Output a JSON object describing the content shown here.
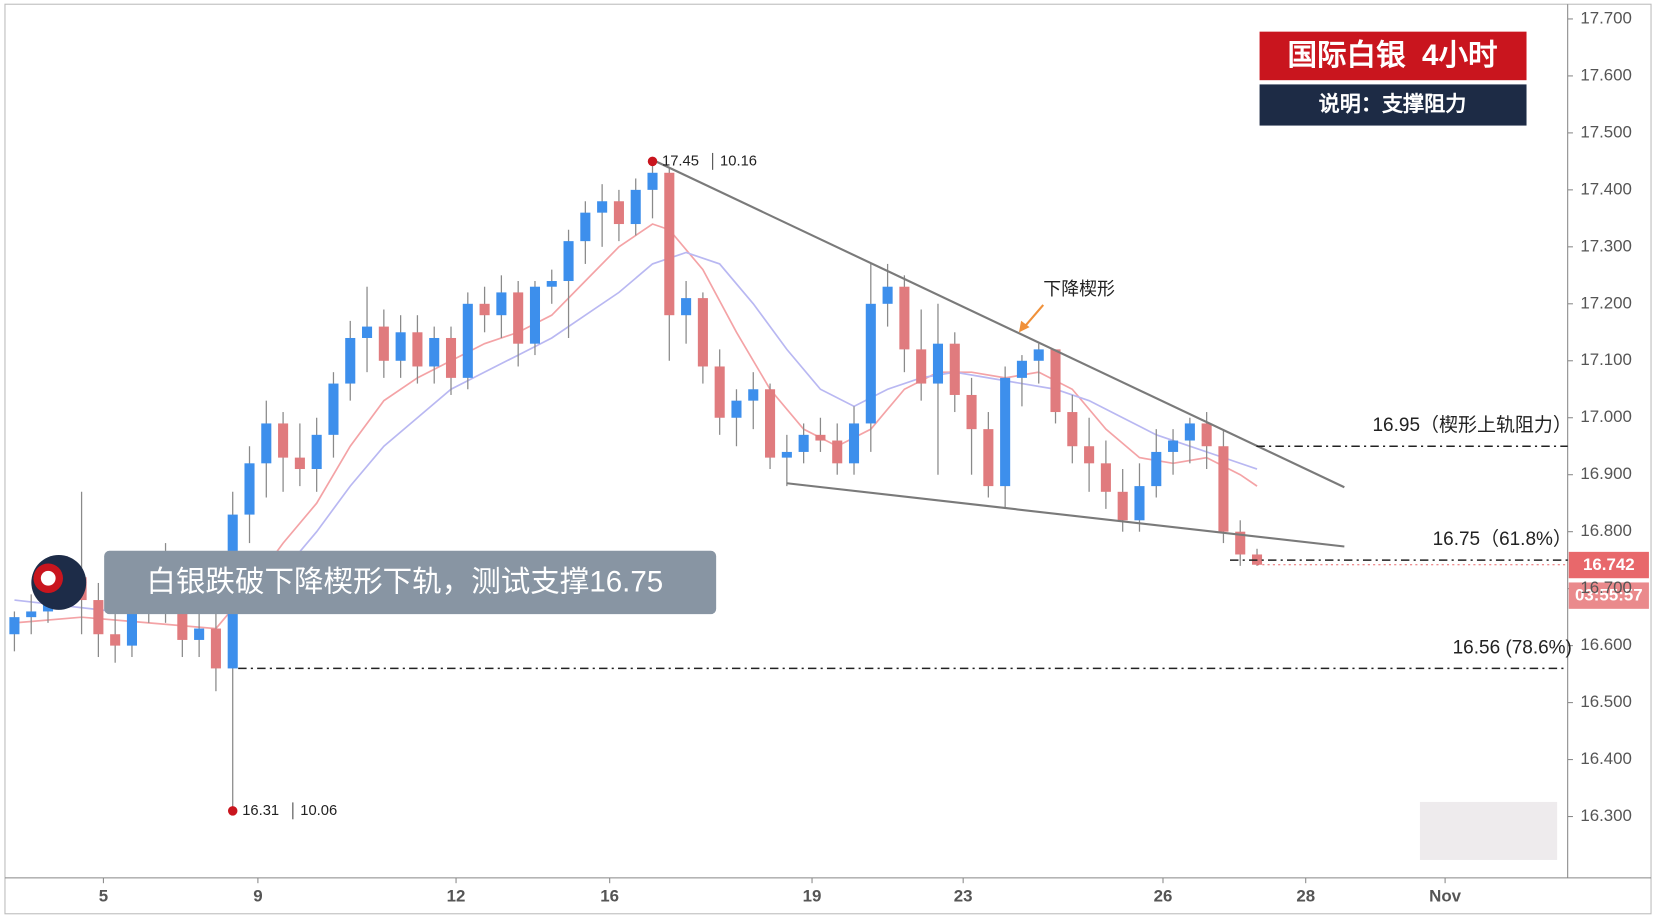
{
  "chart_data": {
    "type": "candlestick",
    "title": "国际白银  4小时",
    "subtitle": "说明：支撑阻力",
    "callout": "白银跌破下降楔形下轨，测试支撑16.75",
    "pattern_label": "下降楔形",
    "up_color": "#3d8fec",
    "down_color": "#e07b7e",
    "xlim": [
      -0.5,
      92.5
    ],
    "ylim": [
      16.196,
      17.724
    ],
    "xticks": [
      {
        "value": 5.3,
        "label": "5"
      },
      {
        "value": 14.5,
        "label": "9"
      },
      {
        "value": 26.3,
        "label": "12"
      },
      {
        "value": 35.45,
        "label": "16"
      },
      {
        "value": 47.5,
        "label": "19"
      },
      {
        "value": 56.5,
        "label": "23"
      },
      {
        "value": 68.4,
        "label": "26"
      },
      {
        "value": 76.9,
        "label": "28"
      },
      {
        "value": 85.2,
        "label": "Nov"
      }
    ],
    "yticks": [
      {
        "value": 16.3,
        "label": "16.300"
      },
      {
        "value": 16.4,
        "label": "16.400"
      },
      {
        "value": 16.5,
        "label": "16.500"
      },
      {
        "value": 16.6,
        "label": "16.600"
      },
      {
        "value": 16.7,
        "label": "16.700"
      },
      {
        "value": 16.8,
        "label": "16.800"
      },
      {
        "value": 16.9,
        "label": "16.900"
      },
      {
        "value": 17.0,
        "label": "17.000"
      },
      {
        "value": 17.1,
        "label": "17.100"
      },
      {
        "value": 17.2,
        "label": "17.200"
      },
      {
        "value": 17.3,
        "label": "17.300"
      },
      {
        "value": 17.4,
        "label": "17.400"
      },
      {
        "value": 17.5,
        "label": "17.500"
      },
      {
        "value": 17.6,
        "label": "17.600"
      },
      {
        "value": 17.7,
        "label": "17.700"
      }
    ],
    "candles": [
      [
        16.62,
        16.66,
        16.59,
        16.65
      ],
      [
        16.65,
        16.69,
        16.62,
        16.66
      ],
      [
        16.66,
        16.72,
        16.64,
        16.7
      ],
      [
        16.7,
        16.74,
        16.67,
        16.72
      ],
      [
        16.72,
        16.87,
        16.62,
        16.68
      ],
      [
        16.68,
        16.71,
        16.58,
        16.62
      ],
      [
        16.62,
        16.66,
        16.57,
        16.6
      ],
      [
        16.6,
        16.68,
        16.58,
        16.66
      ],
      [
        16.66,
        16.76,
        16.64,
        16.73
      ],
      [
        16.73,
        16.78,
        16.64,
        16.67
      ],
      [
        16.67,
        16.7,
        16.58,
        16.61
      ],
      [
        16.61,
        16.66,
        16.58,
        16.63
      ],
      [
        16.63,
        16.68,
        16.52,
        16.56
      ],
      [
        16.56,
        16.87,
        16.31,
        16.83
      ],
      [
        16.83,
        16.95,
        16.78,
        16.92
      ],
      [
        16.92,
        17.03,
        16.86,
        16.99
      ],
      [
        16.99,
        17.01,
        16.87,
        16.93
      ],
      [
        16.93,
        16.99,
        16.88,
        16.91
      ],
      [
        16.91,
        17.0,
        16.87,
        16.97
      ],
      [
        16.97,
        17.08,
        16.93,
        17.06
      ],
      [
        17.06,
        17.17,
        17.03,
        17.14
      ],
      [
        17.14,
        17.23,
        17.08,
        17.16
      ],
      [
        17.16,
        17.19,
        17.07,
        17.1
      ],
      [
        17.1,
        17.18,
        17.07,
        17.15
      ],
      [
        17.15,
        17.18,
        17.06,
        17.09
      ],
      [
        17.09,
        17.16,
        17.06,
        17.14
      ],
      [
        17.14,
        17.16,
        17.04,
        17.07
      ],
      [
        17.07,
        17.22,
        17.05,
        17.2
      ],
      [
        17.2,
        17.23,
        17.15,
        17.18
      ],
      [
        17.18,
        17.25,
        17.14,
        17.22
      ],
      [
        17.22,
        17.24,
        17.09,
        17.13
      ],
      [
        17.13,
        17.24,
        17.11,
        17.23
      ],
      [
        17.23,
        17.26,
        17.2,
        17.24
      ],
      [
        17.24,
        17.33,
        17.14,
        17.31
      ],
      [
        17.31,
        17.38,
        17.27,
        17.36
      ],
      [
        17.36,
        17.41,
        17.3,
        17.38
      ],
      [
        17.38,
        17.4,
        17.31,
        17.34
      ],
      [
        17.34,
        17.42,
        17.32,
        17.4
      ],
      [
        17.4,
        17.45,
        17.35,
        17.43
      ],
      [
        17.43,
        17.44,
        17.1,
        17.18
      ],
      [
        17.18,
        17.24,
        17.13,
        17.21
      ],
      [
        17.21,
        17.22,
        17.06,
        17.09
      ],
      [
        17.09,
        17.12,
        16.97,
        17.0
      ],
      [
        17.0,
        17.05,
        16.95,
        17.03
      ],
      [
        17.03,
        17.08,
        16.98,
        17.05
      ],
      [
        17.05,
        17.06,
        16.91,
        16.93
      ],
      [
        16.93,
        16.97,
        16.88,
        16.94
      ],
      [
        16.94,
        16.99,
        16.92,
        16.97
      ],
      [
        16.97,
        17.0,
        16.94,
        16.96
      ],
      [
        16.96,
        16.99,
        16.9,
        16.92
      ],
      [
        16.92,
        17.02,
        16.9,
        16.99
      ],
      [
        16.99,
        17.27,
        16.94,
        17.2
      ],
      [
        17.2,
        17.27,
        17.16,
        17.23
      ],
      [
        17.23,
        17.25,
        17.08,
        17.12
      ],
      [
        17.12,
        17.19,
        17.03,
        17.06
      ],
      [
        17.06,
        17.2,
        16.9,
        17.13
      ],
      [
        17.13,
        17.15,
        17.01,
        17.04
      ],
      [
        17.04,
        17.07,
        16.9,
        16.98
      ],
      [
        16.98,
        17.01,
        16.86,
        16.88
      ],
      [
        16.88,
        17.09,
        16.84,
        17.07
      ],
      [
        17.07,
        17.11,
        17.02,
        17.1
      ],
      [
        17.1,
        17.13,
        17.06,
        17.12
      ],
      [
        17.12,
        17.12,
        16.99,
        17.01
      ],
      [
        17.01,
        17.04,
        16.92,
        16.95
      ],
      [
        16.95,
        17.0,
        16.87,
        16.92
      ],
      [
        16.92,
        16.96,
        16.84,
        16.87
      ],
      [
        16.87,
        16.91,
        16.8,
        16.82
      ],
      [
        16.82,
        16.92,
        16.8,
        16.88
      ],
      [
        16.88,
        16.98,
        16.86,
        16.94
      ],
      [
        16.94,
        16.98,
        16.9,
        16.96
      ],
      [
        16.96,
        17.0,
        16.92,
        16.99
      ],
      [
        16.99,
        17.01,
        16.91,
        16.95
      ],
      [
        16.95,
        16.98,
        16.78,
        16.8
      ],
      [
        16.8,
        16.82,
        16.74,
        16.76
      ],
      [
        16.76,
        16.77,
        16.74,
        16.742
      ]
    ],
    "moving_averages": [
      {
        "color": "#f4a3a6",
        "x": [
          0,
          4,
          8,
          12,
          14,
          16,
          18,
          20,
          22,
          24,
          26,
          28,
          30,
          32,
          34,
          36,
          38,
          39,
          41,
          43,
          45,
          47,
          49,
          51,
          53,
          55,
          57,
          59,
          61,
          63,
          65,
          67,
          69,
          71,
          73,
          74
        ],
        "values": [
          16.64,
          16.65,
          16.64,
          16.63,
          16.7,
          16.78,
          16.85,
          16.95,
          17.03,
          17.07,
          17.1,
          17.13,
          17.15,
          17.18,
          17.24,
          17.3,
          17.34,
          17.33,
          17.26,
          17.15,
          17.05,
          16.98,
          16.95,
          16.98,
          17.05,
          17.08,
          17.08,
          17.07,
          17.08,
          17.05,
          16.98,
          16.93,
          16.92,
          16.93,
          16.9,
          16.88
        ]
      },
      {
        "color": "#b9b8f2",
        "x": [
          0,
          6,
          12,
          14,
          16,
          18,
          20,
          22,
          24,
          26,
          28,
          30,
          32,
          34,
          36,
          38,
          40,
          42,
          44,
          46,
          48,
          50,
          52,
          54,
          56,
          58,
          60,
          62,
          64,
          66,
          68,
          70,
          72,
          74
        ],
        "values": [
          16.68,
          16.66,
          16.66,
          16.68,
          16.73,
          16.8,
          16.88,
          16.95,
          17.0,
          17.05,
          17.08,
          17.11,
          17.14,
          17.18,
          17.22,
          17.27,
          17.29,
          17.27,
          17.2,
          17.12,
          17.05,
          17.02,
          17.05,
          17.07,
          17.08,
          17.07,
          17.06,
          17.05,
          17.03,
          17.0,
          16.97,
          16.95,
          16.93,
          16.91
        ]
      }
    ],
    "trendlines": [
      {
        "x": [
          38.2,
          79.2
        ],
        "y": [
          17.45,
          16.878
        ]
      },
      {
        "x": [
          46.0,
          79.2
        ],
        "y": [
          16.885,
          16.774
        ]
      }
    ],
    "levels": [
      {
        "value": 16.95,
        "label": "16.95（楔形上轨阻力）"
      },
      {
        "value": 16.75,
        "label": "16.75（61.8%）"
      },
      {
        "value": 16.56,
        "label": "16.56 (78.6%)"
      }
    ],
    "extremes": [
      {
        "x": 38,
        "value": 17.45,
        "date": "10.16"
      },
      {
        "x": 13,
        "value": 16.31,
        "date": "10.06"
      }
    ],
    "last_price": 16.742,
    "countdown": "03:55:57"
  }
}
